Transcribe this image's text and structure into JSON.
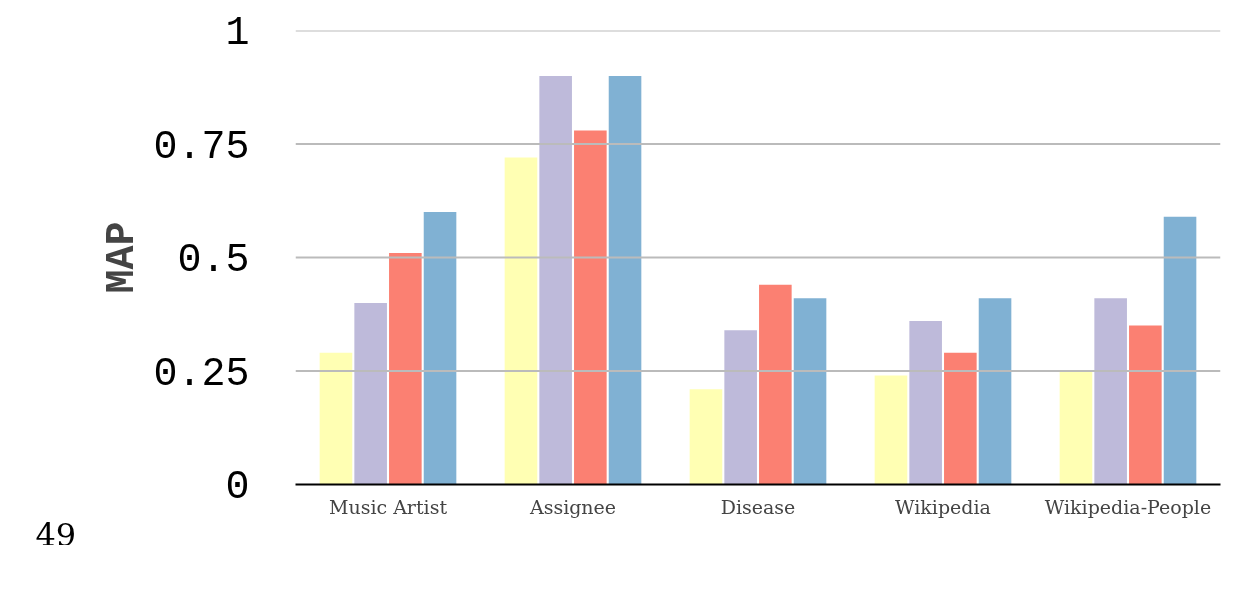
{
  "chart_data": {
    "type": "bar",
    "ylabel": "MAP",
    "categories": [
      "Music Artist",
      "Assignee",
      "Disease",
      "Wikipedia",
      "Wikipedia-People"
    ],
    "series": [
      {
        "color": "#ffffb3",
        "values": [
          0.29,
          0.72,
          0.21,
          0.24,
          0.25
        ]
      },
      {
        "color": "#bebada",
        "values": [
          0.4,
          0.9,
          0.34,
          0.36,
          0.41
        ]
      },
      {
        "color": "#fb8072",
        "values": [
          0.51,
          0.78,
          0.44,
          0.29,
          0.35
        ]
      },
      {
        "color": "#80b1d3",
        "values": [
          0.6,
          0.9,
          0.41,
          0.41,
          0.59
        ]
      }
    ],
    "ylim": [
      0,
      1
    ],
    "yticks": [
      0,
      {
        "value": 0.25,
        "label": "0.25"
      },
      {
        "value": 0.5,
        "label": "0.5"
      },
      {
        "value": 0.75,
        "label": "0.75"
      },
      1
    ],
    "grid": "y",
    "annotations": [
      "49"
    ]
  }
}
